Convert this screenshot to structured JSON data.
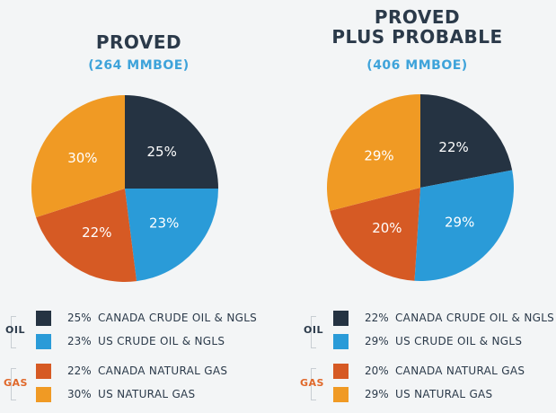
{
  "colors": {
    "canada_oil": "#253342",
    "us_oil": "#2a9bd8",
    "canada_gas": "#d65a24",
    "us_gas": "#f09a24",
    "oil_label": "#2b3a4a",
    "gas_label": "#e0682a"
  },
  "chart_data": [
    {
      "type": "pie",
      "title": "PROVED",
      "subtitle": "(264 MMBOE)",
      "slices": [
        {
          "key": "canada_oil",
          "label": "CANADA CRUDE OIL & NGLS",
          "value": 25,
          "text": "25%"
        },
        {
          "key": "us_oil",
          "label": "US CRUDE OIL & NGLS",
          "value": 23,
          "text": "23%"
        },
        {
          "key": "canada_gas",
          "label": "CANADA NATURAL GAS",
          "value": 22,
          "text": "22%"
        },
        {
          "key": "us_gas",
          "label": "US NATURAL GAS",
          "value": 30,
          "text": "30%"
        }
      ],
      "groups": {
        "oil": "OIL",
        "gas": "GAS"
      }
    },
    {
      "type": "pie",
      "title": "PROVED\nPLUS PROBABLE",
      "subtitle": "(406 MMBOE)",
      "slices": [
        {
          "key": "canada_oil",
          "label": "CANADA CRUDE OIL & NGLS",
          "value": 22,
          "text": "22%"
        },
        {
          "key": "us_oil",
          "label": "US CRUDE OIL & NGLS",
          "value": 29,
          "text": "29%"
        },
        {
          "key": "canada_gas",
          "label": "CANADA NATURAL GAS",
          "value": 20,
          "text": "20%"
        },
        {
          "key": "us_gas",
          "label": "US NATURAL GAS",
          "value": 29,
          "text": "29%"
        }
      ],
      "groups": {
        "oil": "OIL",
        "gas": "GAS"
      }
    }
  ]
}
